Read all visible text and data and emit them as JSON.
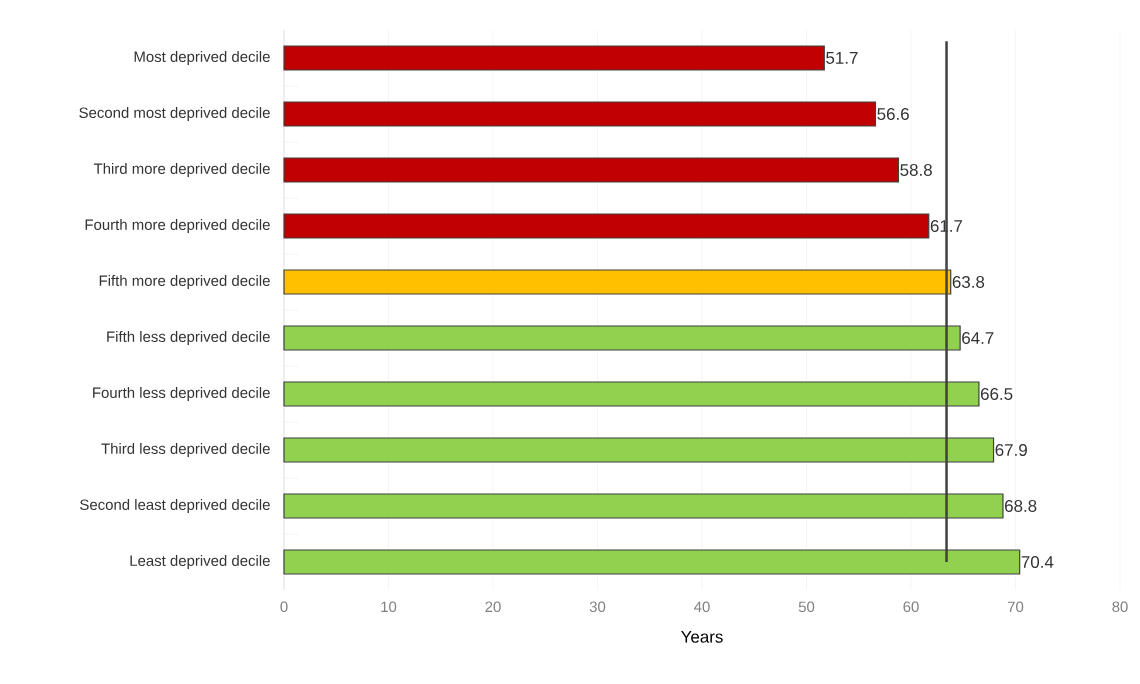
{
  "chart_data": {
    "type": "bar",
    "orientation": "horizontal",
    "xlabel": "Years",
    "categories": [
      "Most deprived decile",
      "Second most deprived decile",
      "Third more deprived decile",
      "Fourth more deprived decile",
      "Fifth more deprived decile",
      "Fifth less deprived decile",
      "Fourth less deprived decile",
      "Third less deprived decile",
      "Second least deprived decile",
      "Least deprived decile"
    ],
    "values": [
      51.7,
      56.6,
      58.8,
      61.7,
      63.8,
      64.7,
      66.5,
      67.9,
      68.8,
      70.4
    ],
    "colors": [
      "#c00000",
      "#c00000",
      "#c00000",
      "#c00000",
      "#ffc000",
      "#92d050",
      "#92d050",
      "#92d050",
      "#92d050",
      "#92d050"
    ],
    "xlim": [
      0,
      80
    ],
    "xticks": [
      0,
      10,
      20,
      30,
      40,
      50,
      60,
      70,
      80
    ],
    "grid": "x",
    "data_labels": true,
    "ref_lines": [
      {
        "axis": "x",
        "value": 63.4,
        "color": "#404040"
      }
    ]
  }
}
